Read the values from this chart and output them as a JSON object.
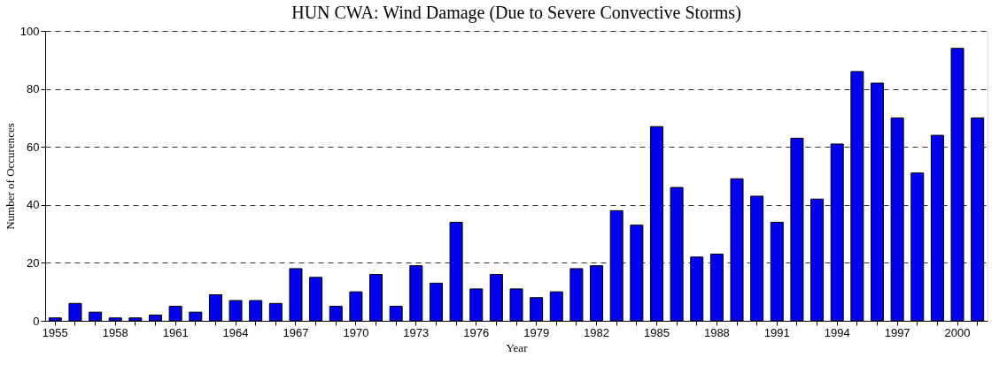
{
  "chart_data": {
    "type": "bar",
    "title": "HUN CWA: Wind Damage (Due to Severe Convective Storms)",
    "xlabel": "Year",
    "ylabel": "Number of Occurences",
    "categories": [
      "1955",
      null,
      null,
      "1958",
      null,
      null,
      "1961",
      null,
      null,
      "1964",
      null,
      null,
      "1967",
      null,
      null,
      "1970",
      null,
      null,
      "1973",
      null,
      null,
      "1976",
      null,
      null,
      "1979",
      null,
      null,
      "1982",
      null,
      null,
      "1985",
      null,
      null,
      "1988",
      null,
      null,
      "1991",
      null,
      null,
      "1994",
      null,
      null,
      "1997",
      null,
      null,
      "2000",
      null
    ],
    "values": [
      1,
      6,
      3,
      1,
      1,
      2,
      5,
      3,
      9,
      7,
      7,
      6,
      18,
      15,
      5,
      10,
      16,
      5,
      19,
      13,
      34,
      11,
      16,
      11,
      8,
      10,
      18,
      19,
      38,
      33,
      67,
      46,
      22,
      23,
      49,
      43,
      34,
      63,
      42,
      61,
      86,
      82,
      70,
      51,
      64,
      94,
      70
    ],
    "color": "#0000ee",
    "ylim": [
      0,
      100
    ],
    "yticks": [
      0,
      20,
      40,
      60,
      80,
      100
    ],
    "grid": "y"
  }
}
